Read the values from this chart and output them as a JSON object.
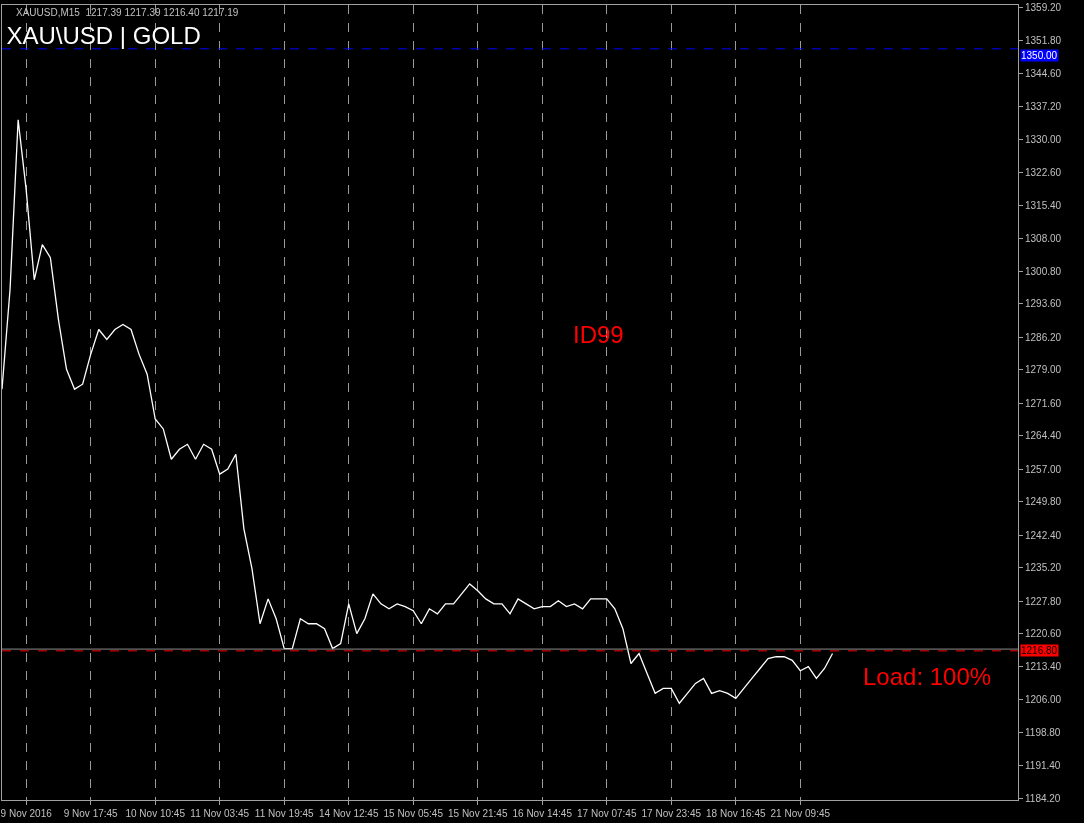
{
  "chart_data": {
    "type": "line",
    "title": "XAU\\USD | GOLD",
    "categories": [
      null,
      null,
      null,
      "9 Nov 2016",
      null,
      null,
      null,
      null,
      null,
      null,
      null,
      "9 Nov 17:45",
      null,
      null,
      null,
      null,
      null,
      null,
      null,
      "10 Nov 10:45",
      null,
      null,
      null,
      null,
      null,
      null,
      null,
      "11 Nov 03:45",
      null,
      null,
      null,
      null,
      null,
      null,
      null,
      "11 Nov 19:45",
      null,
      null,
      null,
      null,
      null,
      null,
      null,
      "14 Nov 12:45",
      null,
      null,
      null,
      null,
      null,
      null,
      null,
      "15 Nov 05:45",
      null,
      null,
      null,
      null,
      null,
      null,
      null,
      "15 Nov 21:45",
      null,
      null,
      null,
      null,
      null,
      null,
      null,
      "16 Nov 14:45",
      null,
      null,
      null,
      null,
      null,
      null,
      null,
      "17 Nov 07:45",
      null,
      null,
      null,
      null,
      null,
      null,
      null,
      "17 Nov 23:45",
      null,
      null,
      null,
      null,
      null,
      null,
      null,
      "18 Nov 16:45",
      null,
      null,
      null,
      null,
      null,
      null,
      null,
      "21 Nov 09:45",
      null,
      null,
      null,
      null,
      null,
      null,
      null,
      null,
      null,
      null,
      null,
      null,
      null,
      null,
      null,
      null,
      null,
      null,
      null,
      null,
      null,
      null,
      null,
      null,
      null,
      null,
      null
    ],
    "series": [
      {
        "color": "#ffffff",
        "values": [
          1274.7,
          1296.8,
          1334.3,
          1318.8,
          1298.9,
          1306.7,
          1303.8,
          1290.1,
          1279.1,
          1274.7,
          1275.8,
          1282.4,
          1287.9,
          1285.7,
          1287.9,
          1289.0,
          1287.9,
          1282.4,
          1278.0,
          1268.1,
          1265.9,
          1259.2,
          1261.4,
          1262.5,
          1259.2,
          1262.5,
          1261.4,
          1255.9,
          1257.0,
          1260.3,
          1243.8,
          1235.0,
          1222.8,
          1228.3,
          1223.9,
          1217.3,
          1217.3,
          1223.9,
          1222.8,
          1222.8,
          1221.7,
          1217.3,
          1218.4,
          1227.2,
          1220.6,
          1223.9,
          1229.4,
          1227.2,
          1226.1,
          1227.2,
          1226.6,
          1225.7,
          1222.8,
          1226.1,
          1225.0,
          1227.2,
          1227.2,
          1229.4,
          1231.6,
          1230.1,
          1228.3,
          1227.2,
          1227.2,
          1225.0,
          1228.3,
          1227.2,
          1226.1,
          1226.6,
          1226.6,
          1227.9,
          1226.6,
          1227.2,
          1226.1,
          1228.3,
          1228.3,
          1228.3,
          1226.1,
          1221.7,
          1214.0,
          1216.2,
          1211.8,
          1207.4,
          1208.5,
          1208.5,
          1205.2,
          1207.4,
          1209.6,
          1210.7,
          1207.4,
          1208.0,
          1207.4,
          1206.3,
          1208.5,
          1210.7,
          1212.9,
          1215.1,
          1215.5,
          1215.5,
          1214.7,
          1212.4,
          1213.3,
          1210.7,
          1212.9,
          1216.2,
          null,
          null,
          null,
          null,
          null,
          null,
          null,
          null,
          null,
          null,
          null,
          null,
          null,
          null,
          null,
          null,
          null,
          null,
          null,
          null,
          null,
          null,
          null
        ]
      }
    ],
    "ylim": [
      1183.8,
      1359.7
    ],
    "yticks": [
      {
        "value": 1359.2,
        "label": "1359.20"
      },
      {
        "value": 1351.8,
        "label": "1351.80"
      },
      {
        "value": 1344.6,
        "label": "1344.60"
      },
      {
        "value": 1337.2,
        "label": "1337.20"
      },
      {
        "value": 1330.0,
        "label": "1330.00"
      },
      {
        "value": 1322.6,
        "label": "1322.60"
      },
      {
        "value": 1315.4,
        "label": "1315.40"
      },
      {
        "value": 1308.0,
        "label": "1308.00"
      },
      {
        "value": 1300.8,
        "label": "1300.80"
      },
      {
        "value": 1293.6,
        "label": "1293.60"
      },
      {
        "value": 1286.2,
        "label": "1286.20"
      },
      {
        "value": 1279.0,
        "label": "1279.00"
      },
      {
        "value": 1271.6,
        "label": "1271.60"
      },
      {
        "value": 1264.4,
        "label": "1264.40"
      },
      {
        "value": 1257.0,
        "label": "1257.00"
      },
      {
        "value": 1249.8,
        "label": "1249.80"
      },
      {
        "value": 1242.4,
        "label": "1242.40"
      },
      {
        "value": 1235.2,
        "label": "1235.20"
      },
      {
        "value": 1227.8,
        "label": "1227.80"
      },
      {
        "value": 1220.6,
        "label": "1220.60"
      },
      {
        "value": 1213.4,
        "label": "1213.40"
      },
      {
        "value": 1206.0,
        "label": "1206.00"
      },
      {
        "value": 1198.8,
        "label": "1198.80"
      },
      {
        "value": 1191.4,
        "label": "1191.40"
      },
      {
        "value": 1184.2,
        "label": "1184.20"
      }
    ],
    "ref_lines": [
      {
        "axis": "y",
        "value": 1216.8,
        "label": "1216.80",
        "color": "#ff0000",
        "line_style": "dashed"
      },
      {
        "axis": "y",
        "value": 1350.0,
        "label": "1350.00",
        "color": "#0000ff",
        "line_style": "dashed"
      },
      {
        "axis": "y",
        "value": 1217.19,
        "color": "#8c8c8c",
        "line_style": "solid"
      }
    ],
    "grid": "x",
    "legend": false,
    "annotations": [
      "XAUUSD,M15  1217.39 1217.39 1216.40 1217.19",
      "ID99",
      "Load: 100%"
    ]
  }
}
